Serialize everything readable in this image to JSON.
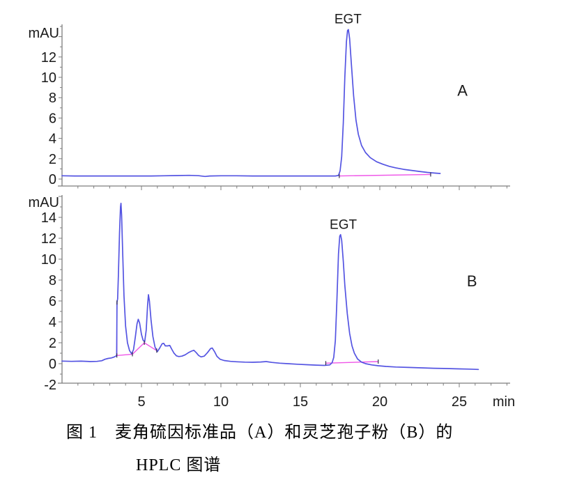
{
  "caption": {
    "line1": "图 1　麦角硫因标准品（A）和灵芝孢子粉（B）的",
    "line2": "HPLC 图谱"
  },
  "colors": {
    "trace": "#5454e2",
    "baseline": "#ef55e8",
    "axis": "#7d7d7d",
    "text": "#1a1a1a",
    "mark": "#30304a"
  },
  "chart_data": [
    {
      "id": "A",
      "type": "line",
      "title": "",
      "panel_label": "A",
      "y_unit_label": "mAU",
      "x_unit_label": "",
      "x_range": [
        0,
        28.2
      ],
      "y_range": [
        -0.75,
        15.2
      ],
      "x_tick_labels": [],
      "y_tick_labels": [
        0,
        2,
        4,
        6,
        8,
        10,
        12
      ],
      "grid": "off",
      "annotations": [
        {
          "text": "EGT",
          "t": 18.0,
          "v": 15.3,
          "size": 19
        },
        {
          "text": "A",
          "t": 25.2,
          "v": 8.2,
          "size": 22
        }
      ],
      "peaks": [
        {
          "name": "EGT",
          "retention_min": 18.0,
          "height_mAU": 14.7
        }
      ],
      "peak_marks": [
        [
          17.45,
          0.3
        ],
        [
          23.2,
          0.45
        ]
      ],
      "series": [
        {
          "name": "standard-signal",
          "role": "trace",
          "points": [
            [
              0,
              0.32
            ],
            [
              0.8,
              0.3
            ],
            [
              1.6,
              0.3
            ],
            [
              2.4,
              0.3
            ],
            [
              3.2,
              0.3
            ],
            [
              4,
              0.3
            ],
            [
              4.8,
              0.3
            ],
            [
              5.6,
              0.3
            ],
            [
              6.4,
              0.32
            ],
            [
              7.2,
              0.34
            ],
            [
              8,
              0.36
            ],
            [
              8.6,
              0.33
            ],
            [
              9.0,
              0.25
            ],
            [
              9.3,
              0.3
            ],
            [
              10,
              0.32
            ],
            [
              11,
              0.32
            ],
            [
              12,
              0.3
            ],
            [
              13,
              0.3
            ],
            [
              14,
              0.3
            ],
            [
              15,
              0.3
            ],
            [
              16,
              0.3
            ],
            [
              16.8,
              0.3
            ],
            [
              17.2,
              0.3
            ],
            [
              17.4,
              0.35
            ],
            [
              17.5,
              0.8
            ],
            [
              17.6,
              2.2
            ],
            [
              17.7,
              5.5
            ],
            [
              17.8,
              10.0
            ],
            [
              17.9,
              13.5
            ],
            [
              17.97,
              14.6
            ],
            [
              18.02,
              14.7
            ],
            [
              18.1,
              13.8
            ],
            [
              18.2,
              11.5
            ],
            [
              18.35,
              8.2
            ],
            [
              18.5,
              5.8
            ],
            [
              18.65,
              4.4
            ],
            [
              18.85,
              3.3
            ],
            [
              19.1,
              2.6
            ],
            [
              19.4,
              2.1
            ],
            [
              19.8,
              1.7
            ],
            [
              20.2,
              1.45
            ],
            [
              20.6,
              1.25
            ],
            [
              21,
              1.1
            ],
            [
              21.5,
              0.95
            ],
            [
              22,
              0.85
            ],
            [
              22.5,
              0.75
            ],
            [
              23,
              0.65
            ],
            [
              23.5,
              0.58
            ],
            [
              23.8,
              0.55
            ]
          ]
        },
        {
          "name": "integration-baseline",
          "role": "baseline",
          "segments": [
            [
              [
                17.45,
                0.3
              ],
              [
                23.2,
                0.45
              ]
            ]
          ]
        }
      ]
    },
    {
      "id": "B",
      "type": "line",
      "title": "",
      "panel_label": "B",
      "y_unit_label": "mAU",
      "x_unit_label": "min",
      "x_range": [
        0,
        28.2
      ],
      "y_range": [
        -1.87,
        16.1
      ],
      "x_tick_labels": [
        5,
        10,
        15,
        20,
        25
      ],
      "y_tick_labels": [
        -2,
        0,
        2,
        4,
        6,
        8,
        10,
        12,
        14
      ],
      "grid": "off",
      "annotations": [
        {
          "text": "EGT",
          "t": 17.7,
          "v": 12.9,
          "size": 19
        },
        {
          "text": "B",
          "t": 25.8,
          "v": 7.4,
          "size": 22
        }
      ],
      "peaks": [
        {
          "name": "peak-1",
          "retention_min": 3.7,
          "height_mAU": 15.3
        },
        {
          "name": "peak-2",
          "retention_min": 4.8,
          "height_mAU": 4.25
        },
        {
          "name": "peak-3",
          "retention_min": 5.45,
          "height_mAU": 6.6
        },
        {
          "name": "peak-4",
          "retention_min": 6.4,
          "height_mAU": 1.95
        },
        {
          "name": "peak-5",
          "retention_min": 8.3,
          "height_mAU": 1.3
        },
        {
          "name": "peak-6",
          "retention_min": 9.4,
          "height_mAU": 1.5
        },
        {
          "name": "EGT",
          "retention_min": 17.5,
          "height_mAU": 12.35
        }
      ],
      "peak_marks": [
        [
          3.45,
          0.78
        ],
        [
          3.46,
          5.85
        ],
        [
          4.43,
          0.9
        ],
        [
          5.18,
          2.0
        ],
        [
          5.96,
          1.25
        ],
        [
          16.6,
          0.05
        ],
        [
          19.9,
          0.2
        ]
      ],
      "series": [
        {
          "name": "sample-signal",
          "role": "trace",
          "points": [
            [
              0,
              0.25
            ],
            [
              0.6,
              0.22
            ],
            [
              1.2,
              0.24
            ],
            [
              1.8,
              0.2
            ],
            [
              2.2,
              0.22
            ],
            [
              2.5,
              0.28
            ],
            [
              2.7,
              0.42
            ],
            [
              2.9,
              0.5
            ],
            [
              3.1,
              0.55
            ],
            [
              3.25,
              0.62
            ],
            [
              3.38,
              0.72
            ],
            [
              3.44,
              0.8
            ],
            [
              3.46,
              5.9
            ],
            [
              3.5,
              6.2
            ],
            [
              3.55,
              8.5
            ],
            [
              3.62,
              12.5
            ],
            [
              3.68,
              15.0
            ],
            [
              3.71,
              15.35
            ],
            [
              3.75,
              14.2
            ],
            [
              3.82,
              10.5
            ],
            [
              3.9,
              6.5
            ],
            [
              4.0,
              3.6
            ],
            [
              4.12,
              2.0
            ],
            [
              4.25,
              1.25
            ],
            [
              4.38,
              0.95
            ],
            [
              4.5,
              1.35
            ],
            [
              4.62,
              2.6
            ],
            [
              4.72,
              3.8
            ],
            [
              4.8,
              4.25
            ],
            [
              4.88,
              3.9
            ],
            [
              5.0,
              2.8
            ],
            [
              5.1,
              2.25
            ],
            [
              5.2,
              2.1
            ],
            [
              5.3,
              3.2
            ],
            [
              5.38,
              5.5
            ],
            [
              5.44,
              6.6
            ],
            [
              5.5,
              6.0
            ],
            [
              5.6,
              4.2
            ],
            [
              5.72,
              2.6
            ],
            [
              5.85,
              1.6
            ],
            [
              6.0,
              1.15
            ],
            [
              6.15,
              1.5
            ],
            [
              6.3,
              1.9
            ],
            [
              6.4,
              1.95
            ],
            [
              6.5,
              1.7
            ],
            [
              6.65,
              1.7
            ],
            [
              6.78,
              1.75
            ],
            [
              6.9,
              1.4
            ],
            [
              7.05,
              1.0
            ],
            [
              7.2,
              0.75
            ],
            [
              7.35,
              0.68
            ],
            [
              7.55,
              0.72
            ],
            [
              7.75,
              0.85
            ],
            [
              7.95,
              1.05
            ],
            [
              8.15,
              1.2
            ],
            [
              8.3,
              1.28
            ],
            [
              8.45,
              1.05
            ],
            [
              8.6,
              0.78
            ],
            [
              8.75,
              0.65
            ],
            [
              8.95,
              0.72
            ],
            [
              9.15,
              1.05
            ],
            [
              9.35,
              1.45
            ],
            [
              9.45,
              1.5
            ],
            [
              9.6,
              1.15
            ],
            [
              9.75,
              0.7
            ],
            [
              9.95,
              0.42
            ],
            [
              10.2,
              0.3
            ],
            [
              10.6,
              0.22
            ],
            [
              11,
              0.18
            ],
            [
              11.5,
              0.15
            ],
            [
              12,
              0.13
            ],
            [
              12.5,
              0.16
            ],
            [
              12.85,
              0.2
            ],
            [
              13.2,
              0.12
            ],
            [
              13.7,
              0.05
            ],
            [
              14.2,
              0
            ],
            [
              14.8,
              -0.05
            ],
            [
              15.4,
              -0.1
            ],
            [
              16,
              -0.14
            ],
            [
              16.5,
              -0.17
            ],
            [
              16.85,
              -0.12
            ],
            [
              17.0,
              0.1
            ],
            [
              17.1,
              0.6
            ],
            [
              17.2,
              2.2
            ],
            [
              17.3,
              6.0
            ],
            [
              17.4,
              10.5
            ],
            [
              17.48,
              12.2
            ],
            [
              17.53,
              12.35
            ],
            [
              17.6,
              11.8
            ],
            [
              17.7,
              9.8
            ],
            [
              17.8,
              7.5
            ],
            [
              17.95,
              4.8
            ],
            [
              18.1,
              2.9
            ],
            [
              18.25,
              1.7
            ],
            [
              18.4,
              1.0
            ],
            [
              18.6,
              0.45
            ],
            [
              18.85,
              0.15
            ],
            [
              19.1,
              0
            ],
            [
              19.5,
              -0.12
            ],
            [
              19.9,
              -0.2
            ],
            [
              20.4,
              -0.27
            ],
            [
              21,
              -0.32
            ],
            [
              21.8,
              -0.36
            ],
            [
              22.6,
              -0.4
            ],
            [
              23.4,
              -0.44
            ],
            [
              24.2,
              -0.47
            ],
            [
              25,
              -0.5
            ],
            [
              25.6,
              -0.52
            ],
            [
              26.2,
              -0.55
            ]
          ]
        },
        {
          "name": "integration-baseline",
          "role": "baseline",
          "segments": [
            [
              [
                3.45,
                0.78
              ],
              [
                3.45,
                5.85
              ]
            ],
            [
              [
                3.45,
                0.78
              ],
              [
                4.43,
                0.9
              ],
              [
                5.18,
                2.0
              ],
              [
                5.96,
                1.25
              ]
            ],
            [
              [
                16.6,
                0.05
              ],
              [
                19.9,
                0.2
              ]
            ]
          ]
        }
      ]
    }
  ]
}
